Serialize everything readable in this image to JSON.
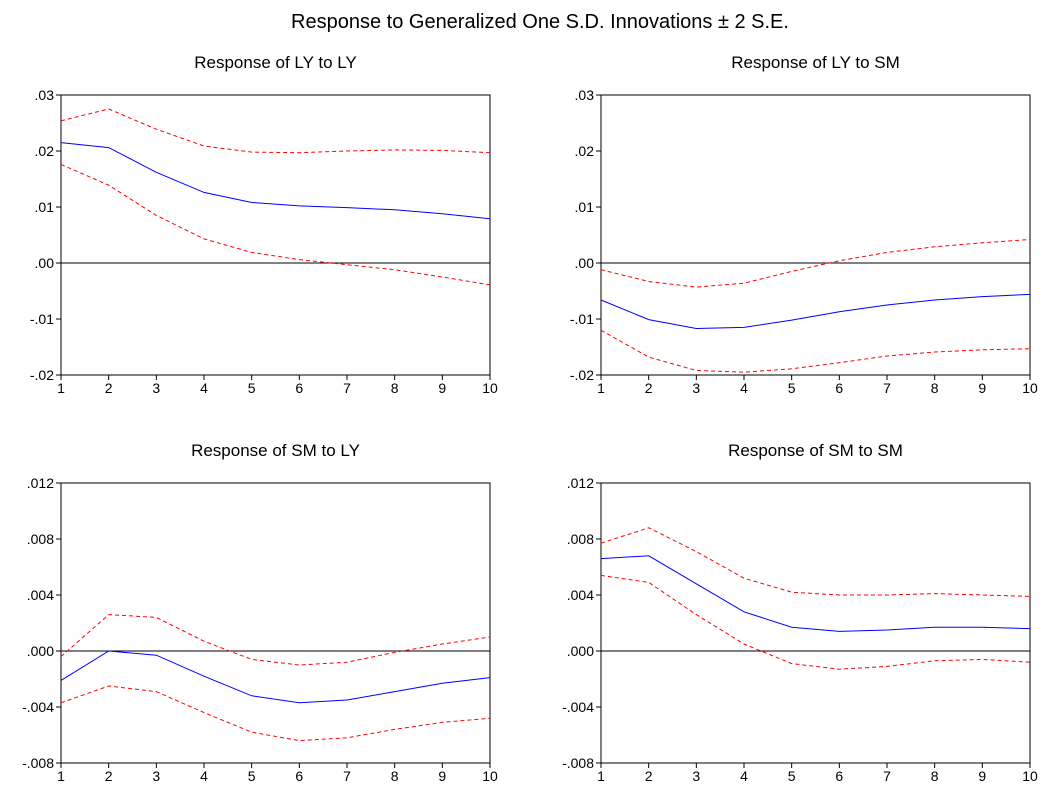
{
  "figure": {
    "title": "Response to Generalized One S.D. Innovations ± 2 S.E."
  },
  "colors": {
    "response_line": "#0000ff",
    "se_bands": "#ff0000",
    "zero_line": "#000000",
    "frame": "#000000"
  },
  "chart_data": [
    {
      "type": "line",
      "title": "Response of LY to LY",
      "x": [
        1,
        2,
        3,
        4,
        5,
        6,
        7,
        8,
        9,
        10
      ],
      "ylim": [
        -0.02,
        0.03
      ],
      "yticks": [
        -0.02,
        -0.01,
        0.0,
        0.01,
        0.02,
        0.03
      ],
      "ytick_labels": [
        "-.02",
        "-.01",
        ".00",
        ".01",
        ".02",
        ".03"
      ],
      "xtick_labels": [
        "1",
        "2",
        "3",
        "4",
        "5",
        "6",
        "7",
        "8",
        "9",
        "10"
      ],
      "zero_line": true,
      "grid": false,
      "series": [
        {
          "role": "response",
          "style": "solid",
          "values": [
            0.0215,
            0.0206,
            0.0162,
            0.0126,
            0.0108,
            0.0102,
            0.0099,
            0.0095,
            0.0088,
            0.0079
          ]
        },
        {
          "role": "upper",
          "style": "dashed",
          "values": [
            0.0254,
            0.0275,
            0.0239,
            0.0209,
            0.0198,
            0.0197,
            0.02,
            0.0202,
            0.0201,
            0.0197
          ]
        },
        {
          "role": "lower",
          "style": "dashed",
          "values": [
            0.0176,
            0.0139,
            0.0085,
            0.0043,
            0.0019,
            0.0006,
            -0.0003,
            -0.0012,
            -0.0025,
            -0.0039
          ]
        }
      ]
    },
    {
      "type": "line",
      "title": "Response of LY to SM",
      "x": [
        1,
        2,
        3,
        4,
        5,
        6,
        7,
        8,
        9,
        10
      ],
      "ylim": [
        -0.02,
        0.03
      ],
      "yticks": [
        -0.02,
        -0.01,
        0.0,
        0.01,
        0.02,
        0.03
      ],
      "ytick_labels": [
        "-.02",
        "-.01",
        ".00",
        ".01",
        ".02",
        ".03"
      ],
      "xtick_labels": [
        "1",
        "2",
        "3",
        "4",
        "5",
        "6",
        "7",
        "8",
        "9",
        "10"
      ],
      "zero_line": true,
      "grid": false,
      "series": [
        {
          "role": "response",
          "style": "solid",
          "values": [
            -0.0066,
            -0.0101,
            -0.0117,
            -0.0115,
            -0.0102,
            -0.0087,
            -0.0075,
            -0.0066,
            -0.006,
            -0.0056
          ]
        },
        {
          "role": "upper",
          "style": "dashed",
          "values": [
            -0.0012,
            -0.0033,
            -0.0043,
            -0.0036,
            -0.0015,
            0.0004,
            0.0019,
            0.0029,
            0.0036,
            0.0042
          ]
        },
        {
          "role": "lower",
          "style": "dashed",
          "values": [
            -0.012,
            -0.0168,
            -0.0192,
            -0.0195,
            -0.0189,
            -0.0178,
            -0.0166,
            -0.0159,
            -0.0155,
            -0.0153
          ]
        }
      ]
    },
    {
      "type": "line",
      "title": "Response of SM to LY",
      "x": [
        1,
        2,
        3,
        4,
        5,
        6,
        7,
        8,
        9,
        10
      ],
      "ylim": [
        -0.008,
        0.012
      ],
      "yticks": [
        -0.008,
        -0.004,
        0.0,
        0.004,
        0.008,
        0.012
      ],
      "ytick_labels": [
        "-.008",
        "-.004",
        ".000",
        ".004",
        ".008",
        ".012"
      ],
      "xtick_labels": [
        "1",
        "2",
        "3",
        "4",
        "5",
        "6",
        "7",
        "8",
        "9",
        "10"
      ],
      "zero_line": true,
      "grid": false,
      "series": [
        {
          "role": "response",
          "style": "solid",
          "values": [
            -0.0021,
            0.0,
            -0.0003,
            -0.0018,
            -0.0032,
            -0.0037,
            -0.0035,
            -0.0029,
            -0.0023,
            -0.0019
          ]
        },
        {
          "role": "upper",
          "style": "dashed",
          "values": [
            -0.0004,
            0.0026,
            0.0024,
            0.0007,
            -0.0006,
            -0.001,
            -0.0008,
            -0.0001,
            0.0005,
            0.001
          ]
        },
        {
          "role": "lower",
          "style": "dashed",
          "values": [
            -0.0037,
            -0.0025,
            -0.0029,
            -0.0044,
            -0.0058,
            -0.0064,
            -0.0062,
            -0.0056,
            -0.0051,
            -0.0048
          ]
        }
      ]
    },
    {
      "type": "line",
      "title": "Response of SM to SM",
      "x": [
        1,
        2,
        3,
        4,
        5,
        6,
        7,
        8,
        9,
        10
      ],
      "ylim": [
        -0.008,
        0.012
      ],
      "yticks": [
        -0.008,
        -0.004,
        0.0,
        0.004,
        0.008,
        0.012
      ],
      "ytick_labels": [
        "-.008",
        "-.004",
        ".000",
        ".004",
        ".008",
        ".012"
      ],
      "xtick_labels": [
        "1",
        "2",
        "3",
        "4",
        "5",
        "6",
        "7",
        "8",
        "9",
        "10"
      ],
      "zero_line": true,
      "grid": false,
      "series": [
        {
          "role": "response",
          "style": "solid",
          "values": [
            0.0066,
            0.0068,
            0.0048,
            0.0028,
            0.0017,
            0.0014,
            0.0015,
            0.0017,
            0.0017,
            0.0016
          ]
        },
        {
          "role": "upper",
          "style": "dashed",
          "values": [
            0.0077,
            0.0088,
            0.0071,
            0.0052,
            0.0042,
            0.004,
            0.004,
            0.0041,
            0.004,
            0.0039
          ]
        },
        {
          "role": "lower",
          "style": "dashed",
          "values": [
            0.0054,
            0.0049,
            0.0026,
            0.0005,
            -0.0009,
            -0.0013,
            -0.0011,
            -0.0007,
            -0.0006,
            -0.0008
          ]
        }
      ]
    }
  ]
}
